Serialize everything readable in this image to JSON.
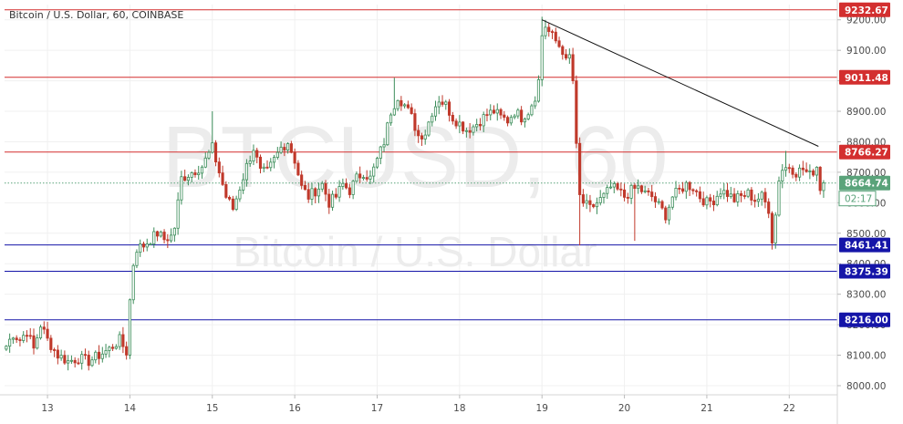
{
  "chart_data": {
    "type": "candlestick",
    "title": "Bitcoin / U.S. Dollar, 60, COINBASE",
    "watermark": {
      "symbol": "BTCUSD, 60",
      "description": "Bitcoin / U.S. Dollar"
    },
    "ylim": [
      7970,
      9250
    ],
    "y_ticks": [
      "8000.00",
      "8100.00",
      "8200.00",
      "8300.00",
      "8400.00",
      "8500.00",
      "8600.00",
      "8700.00",
      "8800.00",
      "8900.00",
      "9000.00",
      "9100.00",
      "9200.00"
    ],
    "x_ticks": [
      {
        "label": "13",
        "t": 12
      },
      {
        "label": "14",
        "t": 36
      },
      {
        "label": "15",
        "t": 60
      },
      {
        "label": "16",
        "t": 84
      },
      {
        "label": "17",
        "t": 108
      },
      {
        "label": "18",
        "t": 132
      },
      {
        "label": "19",
        "t": 156
      },
      {
        "label": "20",
        "t": 180
      },
      {
        "label": "21",
        "t": 204
      },
      {
        "label": "22",
        "t": 228
      }
    ],
    "x_range_hours": [
      -0.5,
      242
    ],
    "last_price": {
      "value": 8664.74,
      "label": "8664.74",
      "countdown": "02:17",
      "color": "#5aa37a"
    },
    "resistance_lines": [
      {
        "value": 9232.67,
        "label": "9232.67",
        "color": "#d32f2f"
      },
      {
        "value": 9011.48,
        "label": "9011.48",
        "color": "#d32f2f"
      },
      {
        "value": 8766.27,
        "label": "8766.27",
        "color": "#d32f2f"
      }
    ],
    "support_lines": [
      {
        "value": 8461.41,
        "label": "8461.41",
        "color": "#1515a8"
      },
      {
        "value": 8375.39,
        "label": "8375.39",
        "color": "#1515a8"
      },
      {
        "value": 8216.0,
        "label": "8216.00",
        "color": "#1515a8"
      }
    ],
    "trendline": {
      "from": {
        "t": 156,
        "price": 9200
      },
      "to": {
        "t": 236.5,
        "price": 8785
      },
      "color": "#111111"
    },
    "up_color": "#3c8d5a",
    "down_color": "#c0392b",
    "anchors": [
      [
        0,
        8130
      ],
      [
        2,
        8170
      ],
      [
        4,
        8150
      ],
      [
        6,
        8180
      ],
      [
        8,
        8120
      ],
      [
        10,
        8200
      ],
      [
        12,
        8150
      ],
      [
        15,
        8100
      ],
      [
        18,
        8080
      ],
      [
        21,
        8090
      ],
      [
        24,
        8080
      ],
      [
        27,
        8100
      ],
      [
        30,
        8120
      ],
      [
        33,
        8150
      ],
      [
        35,
        8110
      ],
      [
        36,
        8280
      ],
      [
        37,
        8400
      ],
      [
        38,
        8450
      ],
      [
        40,
        8460
      ],
      [
        42,
        8480
      ],
      [
        44,
        8500
      ],
      [
        46,
        8480
      ],
      [
        48,
        8490
      ],
      [
        49,
        8520
      ],
      [
        50,
        8600
      ],
      [
        51,
        8680
      ],
      [
        54,
        8700
      ],
      [
        57,
        8720
      ],
      [
        60,
        8780
      ],
      [
        62,
        8700
      ],
      [
        64,
        8620
      ],
      [
        66,
        8580
      ],
      [
        68,
        8650
      ],
      [
        70,
        8720
      ],
      [
        72,
        8780
      ],
      [
        73,
        8740
      ],
      [
        74,
        8700
      ],
      [
        76,
        8700
      ],
      [
        78,
        8740
      ],
      [
        80,
        8780
      ],
      [
        82,
        8800
      ],
      [
        84,
        8740
      ],
      [
        86,
        8650
      ],
      [
        88,
        8620
      ],
      [
        90,
        8640
      ],
      [
        92,
        8660
      ],
      [
        94,
        8600
      ],
      [
        96,
        8620
      ],
      [
        98,
        8660
      ],
      [
        100,
        8640
      ],
      [
        102,
        8680
      ],
      [
        104,
        8700
      ],
      [
        106,
        8680
      ],
      [
        108,
        8740
      ],
      [
        110,
        8800
      ],
      [
        112,
        8900
      ],
      [
        114,
        8950
      ],
      [
        116,
        8920
      ],
      [
        118,
        8880
      ],
      [
        120,
        8820
      ],
      [
        122,
        8830
      ],
      [
        124,
        8900
      ],
      [
        126,
        8940
      ],
      [
        128,
        8920
      ],
      [
        130,
        8880
      ],
      [
        132,
        8860
      ],
      [
        134,
        8840
      ],
      [
        136,
        8850
      ],
      [
        138,
        8870
      ],
      [
        140,
        8890
      ],
      [
        142,
        8900
      ],
      [
        144,
        8880
      ],
      [
        146,
        8870
      ],
      [
        148,
        8900
      ],
      [
        150,
        8880
      ],
      [
        152,
        8900
      ],
      [
        154,
        8950
      ],
      [
        155,
        9000
      ],
      [
        156,
        9150
      ],
      [
        157,
        9180
      ],
      [
        158,
        9160
      ],
      [
        160,
        9130
      ],
      [
        162,
        9100
      ],
      [
        163,
        9060
      ],
      [
        164,
        9080
      ],
      [
        165,
        9000
      ],
      [
        166,
        8780
      ],
      [
        167,
        8620
      ],
      [
        168,
        8600
      ],
      [
        170,
        8580
      ],
      [
        172,
        8600
      ],
      [
        174,
        8620
      ],
      [
        176,
        8650
      ],
      [
        178,
        8640
      ],
      [
        180,
        8620
      ],
      [
        182,
        8640
      ],
      [
        184,
        8650
      ],
      [
        186,
        8630
      ],
      [
        188,
        8620
      ],
      [
        190,
        8590
      ],
      [
        192,
        8560
      ],
      [
        194,
        8620
      ],
      [
        196,
        8640
      ],
      [
        198,
        8660
      ],
      [
        200,
        8650
      ],
      [
        202,
        8620
      ],
      [
        204,
        8600
      ],
      [
        206,
        8610
      ],
      [
        208,
        8640
      ],
      [
        210,
        8630
      ],
      [
        212,
        8610
      ],
      [
        214,
        8620
      ],
      [
        216,
        8630
      ],
      [
        218,
        8610
      ],
      [
        220,
        8620
      ],
      [
        222,
        8580
      ],
      [
        223,
        8480
      ],
      [
        224,
        8560
      ],
      [
        225,
        8680
      ],
      [
        226,
        8710
      ],
      [
        228,
        8720
      ],
      [
        230,
        8700
      ],
      [
        232,
        8710
      ],
      [
        234,
        8690
      ],
      [
        236,
        8720
      ],
      [
        237,
        8650
      ],
      [
        238,
        8640
      ]
    ],
    "wick_extremes": [
      {
        "t": 156,
        "high": 9210
      },
      {
        "t": 167,
        "low": 8460
      },
      {
        "t": 183,
        "low": 8475
      },
      {
        "t": 223,
        "low": 8460
      },
      {
        "t": 227,
        "high": 8770
      },
      {
        "t": 113,
        "high": 9010
      },
      {
        "t": 60,
        "high": 8900
      }
    ]
  }
}
